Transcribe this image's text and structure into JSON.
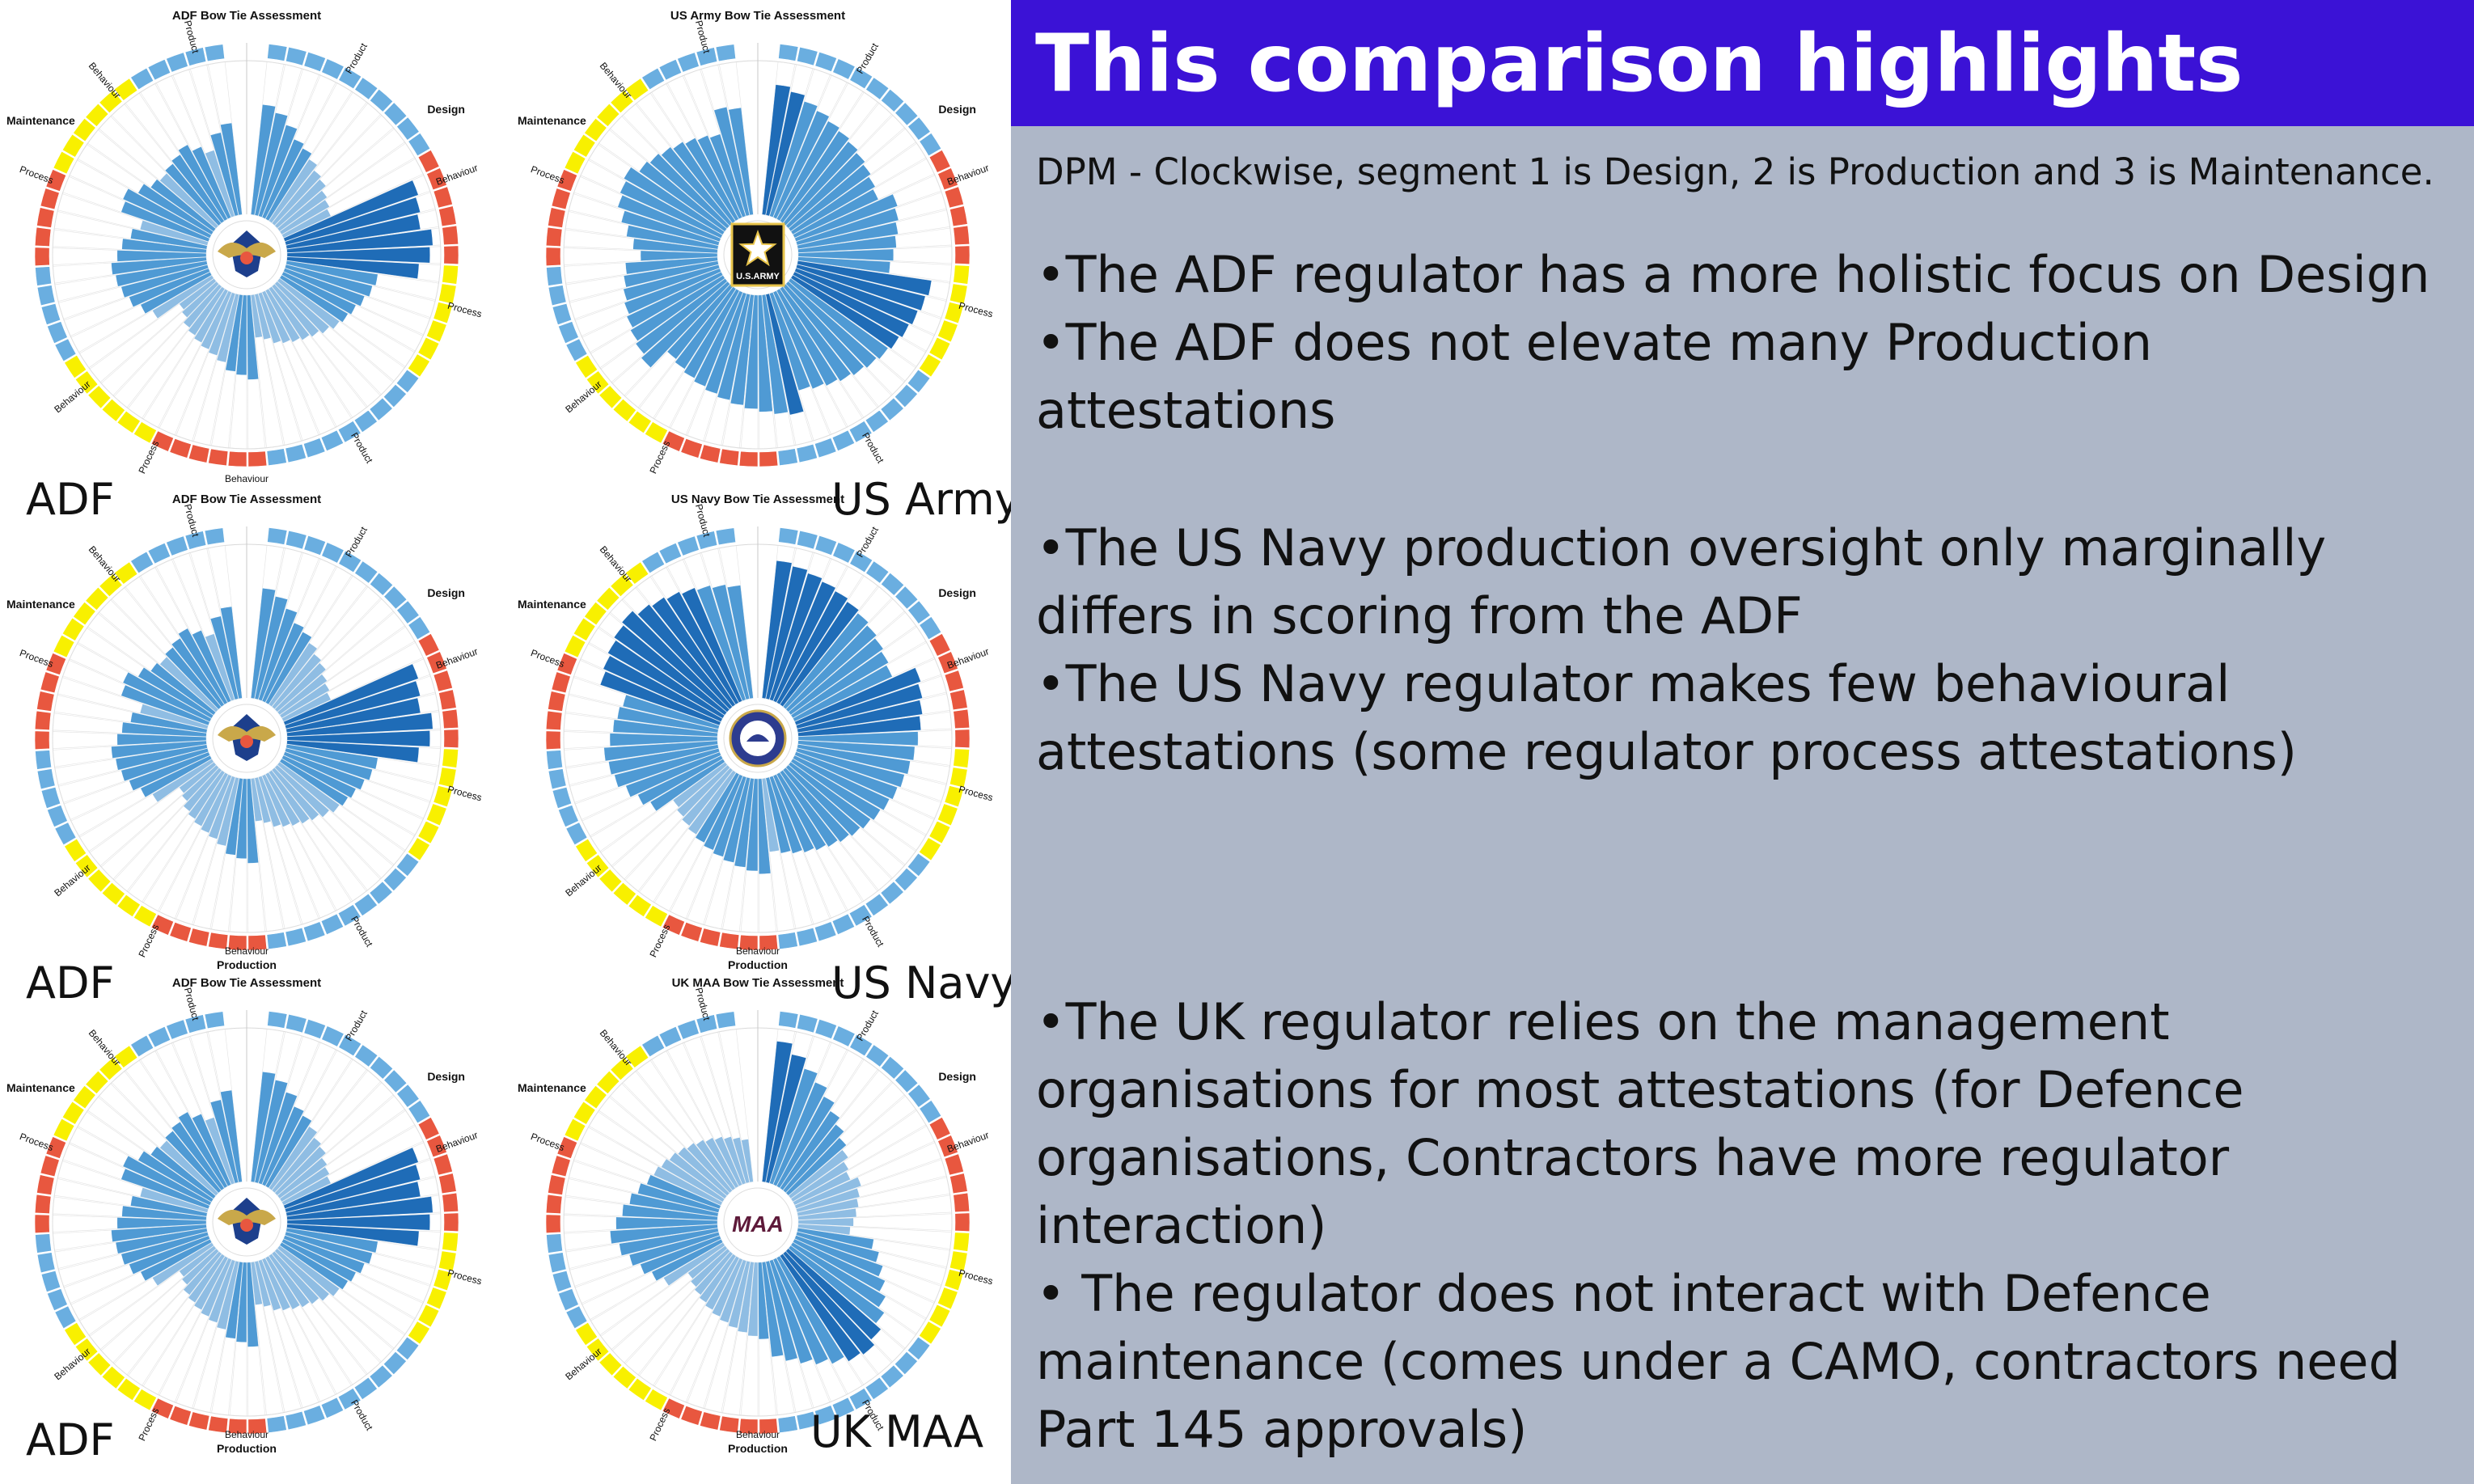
{
  "slide": {
    "title": "This comparison highlights",
    "subtitle": "DPM - Clockwise, segment 1 is Design, 2 is Production and 3 is Maintenance.",
    "groups": [
      {
        "bullets": [
          "•The ADF regulator has a more holistic focus on Design",
          "•The ADF does not elevate many Production attestations"
        ]
      },
      {
        "bullets": [
          "•The US Navy production oversight only marginally differs in scoring from the ADF",
          "•The US Navy regulator makes few behavioural attestations (some regulator process attestations)"
        ]
      },
      {
        "bullets": [
          "•The UK regulator relies on the management organisations for most attestations (for Defence organisations, Contractors have more regulator interaction)",
          "• The regulator does not interact with Defence maintenance (comes under a CAMO, contractors need Part 145 approvals)"
        ]
      }
    ]
  },
  "charts": [
    {
      "id": "adf-1",
      "title": "ADF Bow Tie Assessment",
      "org": "ADF",
      "emblem": "adf-crest-icon",
      "bottom_label": "Behaviour",
      "segment_labels": {
        "design": "Design",
        "maintenance": "Maintenance",
        "production": ""
      },
      "sub_labels": [
        "Product",
        "Behaviour",
        "Process",
        "Product",
        "Process",
        "Behaviour",
        "Process",
        "Behaviour",
        "Product"
      ]
    },
    {
      "id": "us-army",
      "title": "US Army Bow Tie Assessment",
      "org": "US Army",
      "emblem": "us-army-star-icon",
      "emblem_text": "U.S.ARMY",
      "bottom_label": "",
      "segment_labels": {
        "design": "Design",
        "maintenance": "Maintenance",
        "production": ""
      },
      "sub_labels": [
        "Product",
        "Behaviour",
        "Process",
        "Product",
        "Process",
        "Behaviour",
        "Process",
        "Behaviour",
        "Product"
      ]
    },
    {
      "id": "adf-2",
      "title": "ADF Bow Tie Assessment",
      "org": "ADF",
      "emblem": "adf-crest-icon",
      "bottom_label": "Behaviour",
      "segment_labels": {
        "design": "Design",
        "maintenance": "Maintenance",
        "production": "Production"
      },
      "sub_labels": [
        "Product",
        "Behaviour",
        "Process",
        "Product",
        "Process",
        "Behaviour",
        "Process",
        "Behaviour",
        "Product"
      ]
    },
    {
      "id": "us-navy",
      "title": "US Navy Bow Tie Assessment",
      "org": "US Navy",
      "emblem": "us-navy-seal-icon",
      "bottom_label": "Behaviour",
      "segment_labels": {
        "design": "Design",
        "maintenance": "Maintenance",
        "production": "Production"
      },
      "sub_labels": [
        "Product",
        "Behaviour",
        "Process",
        "Product",
        "Process",
        "Behaviour",
        "Process",
        "Behaviour",
        "Product"
      ]
    },
    {
      "id": "adf-3",
      "title": "ADF Bow Tie Assessment",
      "org": "ADF",
      "emblem": "adf-crest-icon",
      "bottom_label": "Behaviour",
      "segment_labels": {
        "design": "Design",
        "maintenance": "Maintenance",
        "production": "Production"
      },
      "sub_labels": [
        "Product",
        "Behaviour",
        "Process",
        "Product",
        "Process",
        "Behaviour",
        "Process",
        "Behaviour",
        "Product"
      ]
    },
    {
      "id": "uk-maa",
      "title": "UK MAA Bow Tie Assessment",
      "org": "UK MAA",
      "emblem": "maa-logo-icon",
      "emblem_text": "MAA",
      "bottom_label": "Behaviour",
      "segment_labels": {
        "design": "Design",
        "maintenance": "Maintenance",
        "production": "Production"
      },
      "sub_labels": [
        "Product",
        "Behaviour",
        "Process",
        "Product",
        "Process",
        "Behaviour",
        "Process",
        "Behaviour",
        "Product"
      ]
    }
  ],
  "chart_data": [
    {
      "type": "radial-bar",
      "title": "ADF Bow Tie Assessment",
      "values": [
        0.72,
        0.68,
        0.62,
        0.55,
        0.52,
        0.48,
        0.44,
        0.42,
        0.38,
        0.36,
        0.34,
        0.92,
        0.9,
        0.88,
        0.95,
        0.93,
        0.86,
        0.6,
        0.58,
        0.55,
        0.52,
        0.5,
        0.48,
        0.45,
        0.42,
        0.4,
        0.38,
        0.36,
        0.34,
        0.3,
        0.28,
        0.55,
        0.52,
        0.5,
        0.45,
        0.42,
        0.4,
        0.38,
        0.36,
        0.34,
        0.3,
        0.28,
        0.45,
        0.5,
        0.55,
        0.58,
        0.6,
        0.62,
        0.58,
        0.55,
        0.5,
        0.45,
        0.6,
        0.62,
        0.55,
        0.5,
        0.48,
        0.5,
        0.52,
        0.55,
        0.5,
        0.45,
        0.55,
        0.6
      ]
    },
    {
      "type": "radial-bar",
      "title": "US Army Bow Tie Assessment",
      "values": [
        0.85,
        0.82,
        0.78,
        0.75,
        0.72,
        0.7,
        0.68,
        0.66,
        0.64,
        0.62,
        0.6,
        0.7,
        0.68,
        0.66,
        0.64,
        0.62,
        0.6,
        0.88,
        0.86,
        0.84,
        0.82,
        0.8,
        0.78,
        0.76,
        0.74,
        0.72,
        0.7,
        0.68,
        0.66,
        0.8,
        0.78,
        0.76,
        0.74,
        0.72,
        0.7,
        0.68,
        0.66,
        0.64,
        0.62,
        0.6,
        0.75,
        0.72,
        0.7,
        0.68,
        0.66,
        0.64,
        0.62,
        0.6,
        0.5,
        0.55,
        0.6,
        0.65,
        0.7,
        0.72,
        0.74,
        0.68,
        0.66,
        0.64,
        0.62,
        0.6,
        0.58,
        0.56,
        0.72,
        0.7
      ]
    },
    {
      "type": "radial-bar",
      "title": "ADF Bow Tie Assessment",
      "values": [
        0.72,
        0.68,
        0.62,
        0.55,
        0.52,
        0.48,
        0.44,
        0.42,
        0.38,
        0.36,
        0.34,
        0.92,
        0.9,
        0.88,
        0.95,
        0.93,
        0.86,
        0.6,
        0.58,
        0.55,
        0.52,
        0.5,
        0.48,
        0.45,
        0.42,
        0.4,
        0.38,
        0.36,
        0.34,
        0.3,
        0.28,
        0.55,
        0.52,
        0.5,
        0.45,
        0.42,
        0.4,
        0.38,
        0.36,
        0.34,
        0.3,
        0.28,
        0.45,
        0.5,
        0.55,
        0.58,
        0.6,
        0.62,
        0.58,
        0.55,
        0.5,
        0.45,
        0.6,
        0.62,
        0.55,
        0.5,
        0.48,
        0.5,
        0.52,
        0.55,
        0.5,
        0.45,
        0.55,
        0.6
      ]
    },
    {
      "type": "radial-bar",
      "title": "US Navy Bow Tie Assessment",
      "values": [
        0.9,
        0.88,
        0.86,
        0.84,
        0.82,
        0.8,
        0.78,
        0.76,
        0.74,
        0.72,
        0.7,
        0.86,
        0.84,
        0.82,
        0.8,
        0.78,
        0.76,
        0.74,
        0.72,
        0.7,
        0.68,
        0.66,
        0.64,
        0.62,
        0.6,
        0.58,
        0.56,
        0.54,
        0.52,
        0.5,
        0.48,
        0.62,
        0.6,
        0.58,
        0.56,
        0.54,
        0.52,
        0.5,
        0.48,
        0.46,
        0.44,
        0.42,
        0.55,
        0.6,
        0.65,
        0.7,
        0.72,
        0.74,
        0.7,
        0.68,
        0.66,
        0.64,
        0.82,
        0.84,
        0.86,
        0.88,
        0.9,
        0.86,
        0.84,
        0.82,
        0.8,
        0.78,
        0.76,
        0.74
      ]
    },
    {
      "type": "radial-bar",
      "title": "ADF Bow Tie Assessment",
      "values": [
        0.72,
        0.68,
        0.62,
        0.55,
        0.52,
        0.48,
        0.44,
        0.42,
        0.38,
        0.36,
        0.34,
        0.92,
        0.9,
        0.88,
        0.95,
        0.93,
        0.86,
        0.6,
        0.58,
        0.55,
        0.52,
        0.5,
        0.48,
        0.45,
        0.42,
        0.4,
        0.38,
        0.36,
        0.34,
        0.3,
        0.28,
        0.55,
        0.52,
        0.5,
        0.45,
        0.42,
        0.4,
        0.38,
        0.36,
        0.34,
        0.3,
        0.28,
        0.45,
        0.5,
        0.55,
        0.58,
        0.6,
        0.62,
        0.58,
        0.55,
        0.5,
        0.45,
        0.6,
        0.62,
        0.55,
        0.5,
        0.48,
        0.5,
        0.52,
        0.55,
        0.5,
        0.45,
        0.55,
        0.6
      ]
    },
    {
      "type": "radial-bar",
      "title": "UK MAA Bow Tie Assessment",
      "values": [
        0.92,
        0.85,
        0.78,
        0.72,
        0.66,
        0.6,
        0.55,
        0.5,
        0.46,
        0.42,
        0.4,
        0.45,
        0.42,
        0.4,
        0.38,
        0.36,
        0.34,
        0.5,
        0.55,
        0.6,
        0.65,
        0.7,
        0.75,
        0.8,
        0.84,
        0.82,
        0.78,
        0.74,
        0.7,
        0.66,
        0.62,
        0.5,
        0.48,
        0.46,
        0.44,
        0.42,
        0.4,
        0.38,
        0.36,
        0.34,
        0.32,
        0.3,
        0.45,
        0.5,
        0.55,
        0.6,
        0.65,
        0.7,
        0.66,
        0.62,
        0.58,
        0.54,
        0.5,
        0.48,
        0.46,
        0.44,
        0.42,
        0.4,
        0.38,
        0.36,
        0.34,
        0.32,
        0.3,
        0.28
      ]
    }
  ],
  "colors": {
    "title_bar": "#3b12d6",
    "panel": "#aeb7c8",
    "bar_light": "#8fbde3",
    "bar_mid": "#4f9ad4",
    "bar_dark": "#1f6cb7",
    "ring_blue": "#6aaee0",
    "ring_red": "#e8573f",
    "ring_yellow": "#f8f000"
  }
}
